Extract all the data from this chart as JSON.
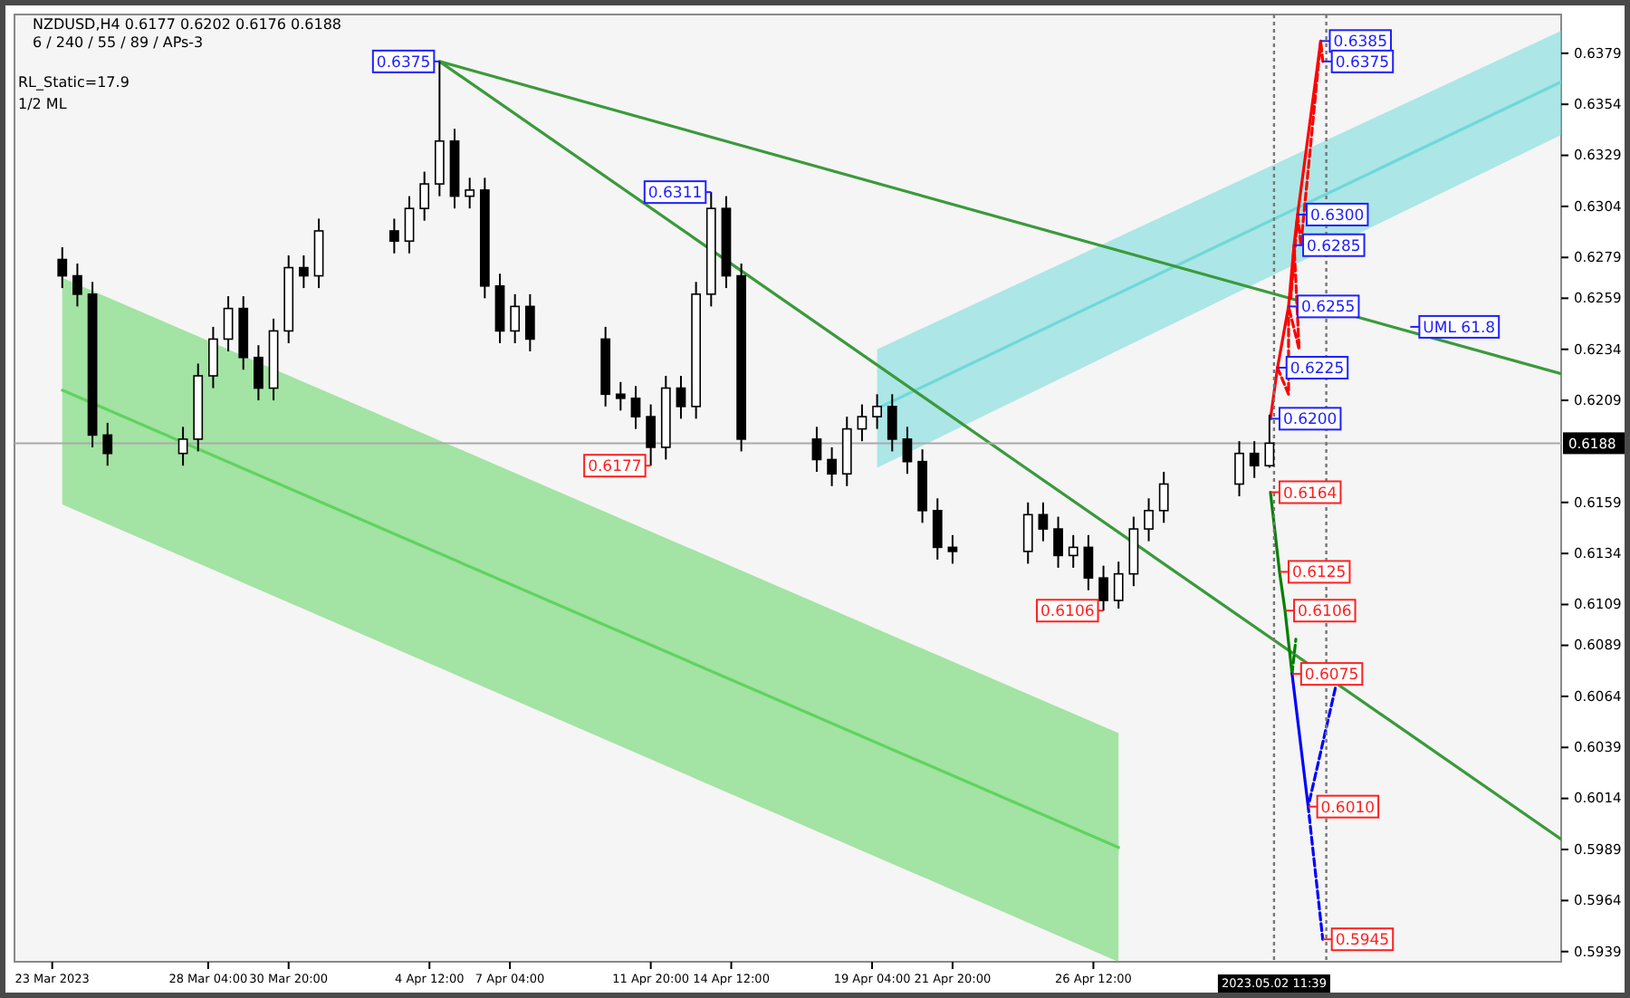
{
  "chart_data": {
    "type": "candlestick",
    "title": "NZDUSD,H4  0.6177 0.6202 0.6176 0.6188",
    "subtitle": "6 / 240 / 55 / 89 / APs-3",
    "x": [
      "2023-03-23T08:00",
      "2023-03-23T20:00",
      "2023-03-24T08:00",
      "2023-03-24T20:00",
      "2023-03-27T08:00",
      "2023-03-27T20:00",
      "2023-03-28T08:00",
      "2023-03-28T20:00",
      "2023-03-29T08:00",
      "2023-03-29T20:00",
      "2023-03-30T08:00",
      "2023-03-30T20:00",
      "2023-03-31T08:00",
      "2023-03-31T20:00",
      "2023-04-03T08:00",
      "2023-04-03T20:00",
      "2023-04-04T08:00",
      "2023-04-04T20:00",
      "2023-04-05T08:00",
      "2023-04-05T20:00",
      "2023-04-06T08:00",
      "2023-04-06T20:00",
      "2023-04-07T08:00",
      "2023-04-07T20:00",
      "2023-04-10T08:00",
      "2023-04-10T20:00",
      "2023-04-11T08:00",
      "2023-04-11T20:00",
      "2023-04-12T08:00",
      "2023-04-12T20:00",
      "2023-04-13T08:00",
      "2023-04-13T20:00",
      "2023-04-14T08:00",
      "2023-04-14T20:00",
      "2023-04-17T08:00",
      "2023-04-17T20:00",
      "2023-04-18T08:00",
      "2023-04-18T20:00",
      "2023-04-19T08:00",
      "2023-04-19T20:00",
      "2023-04-20T08:00",
      "2023-04-20T20:00",
      "2023-04-21T08:00",
      "2023-04-21T20:00",
      "2023-04-24T08:00",
      "2023-04-24T20:00",
      "2023-04-25T08:00",
      "2023-04-25T20:00",
      "2023-04-26T08:00",
      "2023-04-26T20:00",
      "2023-04-27T08:00",
      "2023-04-27T20:00",
      "2023-04-28T08:00",
      "2023-04-28T20:00",
      "2023-05-01T08:00",
      "2023-05-01T20:00",
      "2023-05-02T08:00"
    ],
    "ohlc": [
      [
        0.6278,
        0.6284,
        0.6264,
        0.627
      ],
      [
        0.627,
        0.6276,
        0.6255,
        0.6261
      ],
      [
        0.6261,
        0.6267,
        0.6186,
        0.6192
      ],
      [
        0.6192,
        0.6198,
        0.6177,
        0.6183
      ],
      [
        0.6183,
        0.6196,
        0.6177,
        0.619
      ],
      [
        0.619,
        0.6227,
        0.6184,
        0.6221
      ],
      [
        0.6221,
        0.6245,
        0.6215,
        0.6239
      ],
      [
        0.6239,
        0.626,
        0.6233,
        0.6254
      ],
      [
        0.6254,
        0.626,
        0.6224,
        0.623
      ],
      [
        0.623,
        0.6236,
        0.6209,
        0.6215
      ],
      [
        0.6215,
        0.6249,
        0.6209,
        0.6243
      ],
      [
        0.6243,
        0.628,
        0.6237,
        0.6274
      ],
      [
        0.6274,
        0.628,
        0.6264,
        0.627
      ],
      [
        0.627,
        0.6298,
        0.6264,
        0.6292
      ],
      [
        0.6292,
        0.6298,
        0.6281,
        0.6287
      ],
      [
        0.6287,
        0.6309,
        0.6281,
        0.6303
      ],
      [
        0.6303,
        0.6321,
        0.6297,
        0.6315
      ],
      [
        0.6315,
        0.6375,
        0.6309,
        0.6336
      ],
      [
        0.6336,
        0.6342,
        0.6303,
        0.6309
      ],
      [
        0.6309,
        0.6318,
        0.6303,
        0.6312
      ],
      [
        0.6312,
        0.6318,
        0.6259,
        0.6265
      ],
      [
        0.6265,
        0.6271,
        0.6237,
        0.6243
      ],
      [
        0.6243,
        0.6261,
        0.6237,
        0.6255
      ],
      [
        0.6255,
        0.6261,
        0.6233,
        0.6239
      ],
      [
        0.6239,
        0.6245,
        0.6206,
        0.6212
      ],
      [
        0.6212,
        0.6218,
        0.6204,
        0.621
      ],
      [
        0.621,
        0.6216,
        0.6195,
        0.6201
      ],
      [
        0.6201,
        0.6207,
        0.6177,
        0.6186
      ],
      [
        0.6186,
        0.6221,
        0.618,
        0.6215
      ],
      [
        0.6215,
        0.6221,
        0.62,
        0.6206
      ],
      [
        0.6206,
        0.6267,
        0.62,
        0.6261
      ],
      [
        0.6261,
        0.6311,
        0.6255,
        0.6303
      ],
      [
        0.6303,
        0.6309,
        0.6264,
        0.627
      ],
      [
        0.627,
        0.6276,
        0.6184,
        0.619
      ],
      [
        0.619,
        0.6196,
        0.6174,
        0.618
      ],
      [
        0.618,
        0.6186,
        0.6167,
        0.6173
      ],
      [
        0.6173,
        0.6201,
        0.6167,
        0.6195
      ],
      [
        0.6195,
        0.6207,
        0.6189,
        0.6201
      ],
      [
        0.6201,
        0.6212,
        0.6195,
        0.6206
      ],
      [
        0.6206,
        0.6212,
        0.6184,
        0.619
      ],
      [
        0.619,
        0.6196,
        0.6173,
        0.6179
      ],
      [
        0.6179,
        0.6185,
        0.6149,
        0.6155
      ],
      [
        0.6155,
        0.6161,
        0.6131,
        0.6137
      ],
      [
        0.6137,
        0.6143,
        0.6129,
        0.6135
      ],
      [
        0.6135,
        0.6159,
        0.6129,
        0.6153
      ],
      [
        0.6153,
        0.6159,
        0.614,
        0.6146
      ],
      [
        0.6146,
        0.6152,
        0.6127,
        0.6133
      ],
      [
        0.6133,
        0.6143,
        0.6127,
        0.6137
      ],
      [
        0.6137,
        0.6143,
        0.6116,
        0.6122
      ],
      [
        0.6122,
        0.6128,
        0.6106,
        0.6111
      ],
      [
        0.6111,
        0.613,
        0.6107,
        0.6124
      ],
      [
        0.6124,
        0.6152,
        0.6118,
        0.6146
      ],
      [
        0.6146,
        0.6161,
        0.614,
        0.6155
      ],
      [
        0.6155,
        0.6174,
        0.6149,
        0.6168
      ],
      [
        0.6168,
        0.6189,
        0.6162,
        0.6183
      ],
      [
        0.6183,
        0.6189,
        0.6171,
        0.6177
      ],
      [
        0.6177,
        0.6202,
        0.6176,
        0.6188
      ]
    ],
    "series": [
      {
        "type": "line",
        "color": "#5fd35f",
        "x": [
          "2023-03-23T08:00",
          "2023-04-27T08:00"
        ],
        "values": [
          0.6214,
          0.599
        ],
        "lower": [
          0.6158,
          0.5934
        ],
        "upper": [
          0.6269,
          0.6046
        ]
      },
      {
        "type": "line",
        "color": "#6fd8d8",
        "x": [
          "2023-04-19T08:00",
          "2023-05-12T00:00"
        ],
        "values": [
          0.6205,
          0.6365
        ],
        "lower": [
          0.6176,
          0.6339
        ],
        "upper": [
          0.6234,
          0.639
        ]
      },
      {
        "type": "line",
        "color": "#3a9a3a",
        "x": [
          "2023-04-04T20:00",
          "2023-05-12T00:00"
        ],
        "values": [
          0.6375,
          0.6222
        ]
      },
      {
        "type": "line",
        "color": "#3a9a3a",
        "x": [
          "2023-04-04T20:00",
          "2023-05-12T00:00"
        ],
        "values": [
          0.6375,
          0.5994
        ]
      },
      {
        "type": "line",
        "color": "#ff0000",
        "x": [
          "2023-05-02T08:48",
          "2023-05-02T14:24",
          "2023-05-02T23:12",
          "2023-05-03T03:36",
          "2023-05-03T06:24",
          "2023-05-04T00:48"
        ],
        "values": [
          0.62,
          0.6225,
          0.6255,
          0.6285,
          0.63,
          0.6385
        ]
      },
      {
        "type": "line",
        "color": "#ff0000",
        "line_style": "dashed",
        "x": [
          "2023-05-02T14:24",
          "2023-05-02T23:12",
          "2023-05-02T23:12",
          "2023-05-03T07:36",
          "2023-05-03T03:36",
          "2023-05-03T01:00",
          "2023-05-03T06:24",
          "2023-05-03T09:00",
          "2023-05-04T00:48",
          "2023-05-04T02:24"
        ],
        "values": [
          0.6225,
          0.6212,
          0.6255,
          0.6234,
          0.6285,
          0.6259,
          0.63,
          0.6285,
          0.6385,
          0.6375
        ]
      },
      {
        "type": "line",
        "color": "#008000",
        "x": [
          "2023-05-02T08:48",
          "2023-05-02T16:00",
          "2023-05-02T20:24",
          "2023-05-03T02:00"
        ],
        "values": [
          0.6164,
          0.6125,
          0.6106,
          0.6075
        ]
      },
      {
        "type": "line",
        "color": "#008000",
        "line_style": "dashed",
        "x": [
          "2023-05-03T02:00",
          "2023-05-03T05:00"
        ],
        "values": [
          0.6075,
          0.6092
        ]
      },
      {
        "type": "line",
        "color": "#0000ff",
        "x": [
          "2023-05-03T02:00",
          "2023-05-03T14:48"
        ],
        "values": [
          0.6075,
          0.601
        ]
      },
      {
        "type": "line",
        "color": "#0000ff",
        "line_style": "dashed",
        "x": [
          "2023-05-04T12:24",
          "2023-05-03T14:48",
          "2023-05-04T02:24"
        ],
        "values": [
          0.6068,
          0.601,
          0.5945
        ]
      }
    ],
    "xlim": [
      "2023-03-21T18:00",
      "2023-05-12T00:00"
    ],
    "xticks": [
      {
        "value": "2023-03-23",
        "label": "23 Mar 2023"
      },
      {
        "value": "2023-03-28T04:00",
        "label": "28 Mar 04:00"
      },
      {
        "value": "2023-03-30T20:00",
        "label": "30 Mar 20:00"
      },
      {
        "value": "2023-04-04T12:00",
        "label": "4 Apr 12:00"
      },
      {
        "value": "2023-04-07T04:00",
        "label": "7 Apr 04:00"
      },
      {
        "value": "2023-04-11T20:00",
        "label": "11 Apr 20:00"
      },
      {
        "value": "2023-04-14T12:00",
        "label": "14 Apr 12:00"
      },
      {
        "value": "2023-04-19T04:00",
        "label": "19 Apr 04:00"
      },
      {
        "value": "2023-04-21T20:00",
        "label": "21 Apr 20:00"
      },
      {
        "value": "2023-04-26T12:00",
        "label": "26 Apr 12:00"
      }
    ],
    "ylim": [
      0.5934,
      0.6398
    ],
    "yticks": [
      0.6379,
      0.6354,
      0.6329,
      0.6304,
      0.6279,
      0.6259,
      0.6234,
      0.6209,
      0.6159,
      0.6134,
      0.6109,
      0.6089,
      0.6064,
      0.6039,
      0.6014,
      0.5989,
      0.5964,
      0.5939
    ],
    "ref_lines": [
      {
        "axis": "y",
        "value": 0.6188,
        "label": "0.6188",
        "color": "#aaaaaa",
        "line_style": "solid"
      },
      {
        "axis": "x",
        "value": "2023-05-02T11:39",
        "label": "2023.05.02 11:39",
        "color": "#777777",
        "line_style": "dotted"
      },
      {
        "axis": "x",
        "value": "2023-05-04T05:12",
        "color": "#777777",
        "line_style": "dotted"
      }
    ],
    "annotations": [
      "RL_Static=17.9",
      "1/2 ML",
      {
        "text": "UML 61.8",
        "x": "2023-05-07T00:00",
        "y": 0.6245
      },
      {
        "text": "0.6375",
        "x": "2023-04-04T20:00",
        "y": 0.6375
      },
      {
        "text": "0.6311",
        "x": "2023-04-13T20:00",
        "y": 0.6311
      },
      {
        "text": "0.6177",
        "x": "2023-04-11T20:00",
        "y": 0.6177
      },
      {
        "text": "0.6106",
        "x": "2023-04-26T20:00",
        "y": 0.6106
      },
      {
        "text": "0.6385",
        "x": "2023-05-04T00:48",
        "y": 0.6385
      },
      {
        "text": "0.6375",
        "x": "2023-05-04T02:24",
        "y": 0.6375
      },
      {
        "text": "0.6300",
        "x": "2023-05-03T06:24",
        "y": 0.63
      },
      {
        "text": "0.6285",
        "x": "2023-05-03T03:36",
        "y": 0.6285
      },
      {
        "text": "0.6255",
        "x": "2023-05-02T23:12",
        "y": 0.6255
      },
      {
        "text": "0.6225",
        "x": "2023-05-02T14:24",
        "y": 0.6225
      },
      {
        "text": "0.6200",
        "x": "2023-05-02T08:48",
        "y": 0.62
      },
      {
        "text": "0.6164",
        "x": "2023-05-02T08:48",
        "y": 0.6164
      },
      {
        "text": "0.6125",
        "x": "2023-05-02T16:00",
        "y": 0.6125
      },
      {
        "text": "0.6106",
        "x": "2023-05-02T20:24",
        "y": 0.6106
      },
      {
        "text": "0.6075",
        "x": "2023-05-03T02:00",
        "y": 0.6075
      },
      {
        "text": "0.6010",
        "x": "2023-05-03T14:48",
        "y": 0.601
      },
      {
        "text": "0.5945",
        "x": "2023-05-04T02:24",
        "y": 0.5945
      }
    ]
  }
}
